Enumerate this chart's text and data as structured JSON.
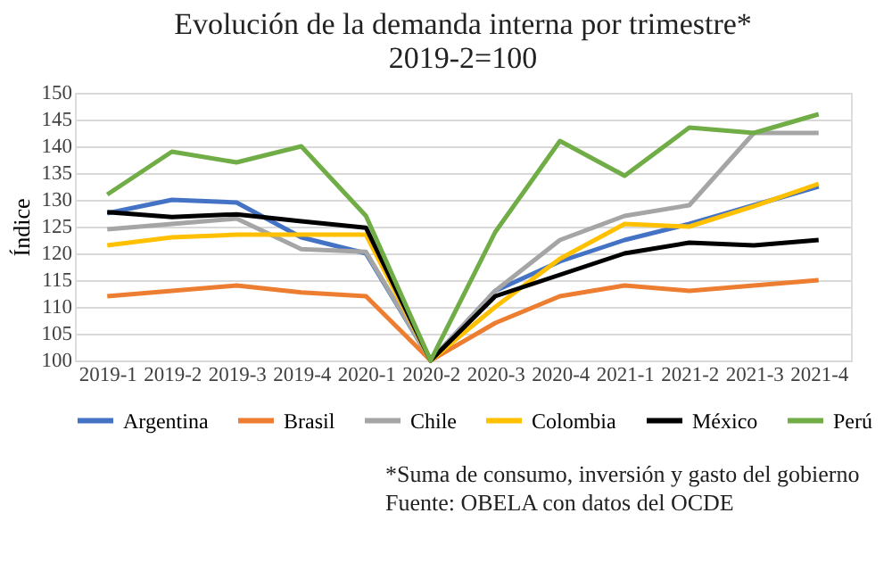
{
  "chart_data": {
    "type": "line",
    "title": "Evolución de la demanda interna por trimestre*\n2019-2=100",
    "ylabel": "Índice",
    "categories": [
      "2019-1",
      "2019-2",
      "2019-3",
      "2019-4",
      "2020-1",
      "2020-2",
      "2020-3",
      "2020-4",
      "2021-1",
      "2021-2",
      "2021-3",
      "2021-4"
    ],
    "series": [
      {
        "name": "Argentina",
        "color": "#4472c4",
        "values": [
          127.5,
          130,
          129.5,
          123,
          120,
          100,
          113,
          118.5,
          122.5,
          125.5,
          129,
          132.5
        ]
      },
      {
        "name": "Brasil",
        "color": "#ed7d31",
        "values": [
          112,
          113,
          114,
          112.7,
          112,
          100,
          107,
          112,
          114,
          113,
          114,
          115
        ]
      },
      {
        "name": "Chile",
        "color": "#a5a5a5",
        "values": [
          124.5,
          125.5,
          126.5,
          120.8,
          120.3,
          100,
          113,
          122.5,
          127,
          129,
          142.5,
          142.5
        ]
      },
      {
        "name": "Colombia",
        "color": "#ffc000",
        "values": [
          121.5,
          123,
          123.5,
          123.5,
          123.5,
          100,
          110,
          119,
          125.5,
          125,
          128.8,
          133
        ]
      },
      {
        "name": "México",
        "color": "#000000",
        "values": [
          127.7,
          126.8,
          127.3,
          126,
          124.8,
          100,
          112,
          116,
          120,
          122,
          121.5,
          122.5
        ]
      },
      {
        "name": "Perú",
        "color": "#70ad47",
        "values": [
          131,
          139,
          137,
          140,
          127,
          100,
          124,
          141,
          134.5,
          143.5,
          142.5,
          146
        ]
      }
    ],
    "ylim": [
      100,
      150
    ],
    "yticks": [
      100,
      105,
      110,
      115,
      120,
      125,
      130,
      135,
      140,
      145,
      150
    ],
    "grid": "y",
    "legend": "bottom",
    "marker": "none",
    "line_style": "solid",
    "annotations": [
      "*Suma de consumo, inversión y gasto del gobierno",
      "Fuente: OBELA con datos del OCDE"
    ]
  }
}
